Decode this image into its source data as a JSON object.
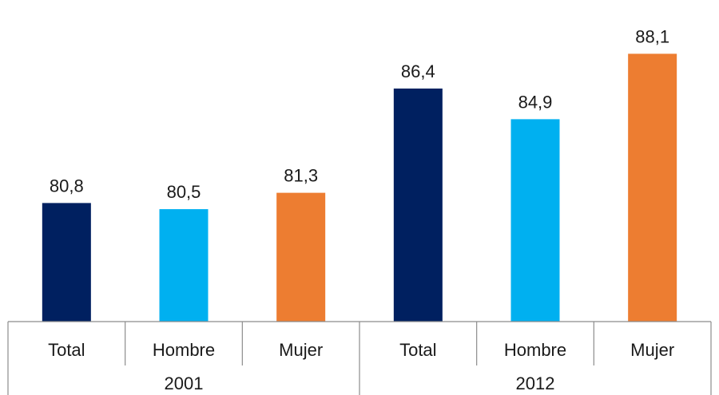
{
  "chart_data": {
    "type": "bar",
    "groups": [
      "2001",
      "2012"
    ],
    "categories": [
      {
        "group": "2001",
        "label": "Total",
        "value": 80.8,
        "display": "80,8",
        "color": "#002060"
      },
      {
        "group": "2001",
        "label": "Hombre",
        "value": 80.5,
        "display": "80,5",
        "color": "#00b0f0"
      },
      {
        "group": "2001",
        "label": "Mujer",
        "value": 81.3,
        "display": "81,3",
        "color": "#ed7d31"
      },
      {
        "group": "2012",
        "label": "Total",
        "value": 86.4,
        "display": "86,4",
        "color": "#002060"
      },
      {
        "group": "2012",
        "label": "Hombre",
        "value": 84.9,
        "display": "84,9",
        "color": "#00b0f0"
      },
      {
        "group": "2012",
        "label": "Mujer",
        "value": 88.1,
        "display": "88,1",
        "color": "#ed7d31"
      }
    ],
    "ylim": [
      75,
      89.95
    ],
    "grid": false,
    "legend": "none",
    "title": "",
    "xlabel": "",
    "ylabel": ""
  }
}
